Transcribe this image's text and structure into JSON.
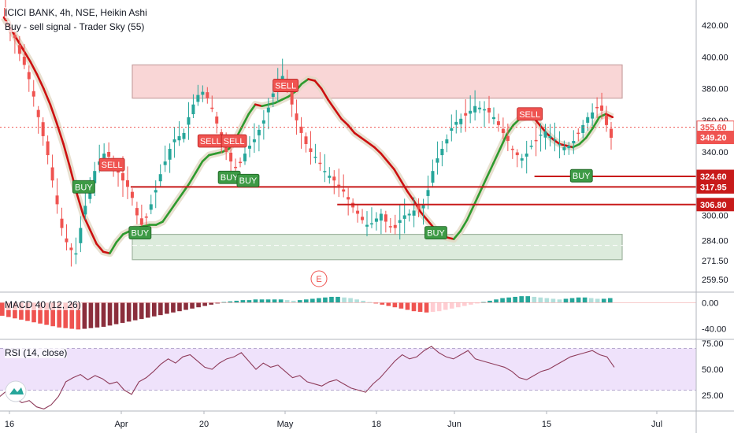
{
  "header": {
    "title": "ICICI BANK, 4h, NSE, Heikin Ashi",
    "indicator": "Buy - sell signal - Trader Sky  (55)"
  },
  "macd_panel": {
    "label": "MACD 40 (12, 26)"
  },
  "rsi_panel": {
    "label": "RSI (14, close)"
  },
  "earnings_marker": "E",
  "colors": {
    "up": "#26a69a",
    "down": "#ef5350",
    "trend_up": "#2e9a2e",
    "trend_down": "#cc1010",
    "sell_zone": "#f9d6d6",
    "buy_zone": "#dcebdc",
    "rsi_band": "#efe2fb",
    "level": "#c81a1a"
  },
  "chart_data": [
    {
      "type": "candlestick",
      "title": "ICICI BANK, 4h, NSE, Heikin Ashi",
      "y_axis": {
        "ticks": [
          420.0,
          400.0,
          380.0,
          360.0,
          340.0,
          324.6,
          317.95,
          306.8,
          300.0,
          284.0,
          271.5,
          259.5
        ],
        "range": [
          252,
          436
        ]
      },
      "x_axis": {
        "labels": [
          "16",
          "Apr",
          "20",
          "May",
          "18",
          "Jun",
          "15",
          "Jul"
        ]
      },
      "price_labels": [
        {
          "value": 355.6,
          "text": "355.60",
          "color": "#ef5350",
          "style": "last"
        },
        {
          "value": 349.2,
          "text": "349.20",
          "color": "#ef5350",
          "style": "filled"
        },
        {
          "value": 324.6,
          "text": "324.60",
          "color": "#c81a1a",
          "style": "filled"
        },
        {
          "value": 317.95,
          "text": "317.95",
          "color": "#c81a1a",
          "style": "filled"
        },
        {
          "value": 306.8,
          "text": "306.80",
          "color": "#c81a1a",
          "style": "filled"
        }
      ],
      "zones": [
        {
          "name": "sell-zone",
          "from": 374,
          "to": 395
        },
        {
          "name": "buy-zone",
          "from": 272,
          "to": 288
        }
      ],
      "level_lines": [
        {
          "value": 324.6,
          "from_bar": 113
        },
        {
          "value": 317.95,
          "from_bar": 27
        },
        {
          "value": 306.8,
          "from_bar": 71
        }
      ],
      "signals": [
        {
          "type": "SELL",
          "bar": 23,
          "price": 332
        },
        {
          "type": "BUY",
          "bar": 17,
          "price": 318
        },
        {
          "type": "BUY",
          "bar": 29,
          "price": 289
        },
        {
          "type": "SELL",
          "bar": 44,
          "price": 347
        },
        {
          "type": "SELL",
          "bar": 49,
          "price": 347
        },
        {
          "type": "BUY",
          "bar": 48,
          "price": 324
        },
        {
          "type": "BUY",
          "bar": 52,
          "price": 322
        },
        {
          "type": "SELL",
          "bar": 60,
          "price": 382
        },
        {
          "type": "BUY",
          "bar": 92,
          "price": 289
        },
        {
          "type": "SELL",
          "bar": 112,
          "price": 364
        },
        {
          "type": "BUY",
          "bar": 123,
          "price": 325
        }
      ],
      "closes": [
        425,
        416,
        412,
        402,
        395,
        386,
        375,
        362,
        350,
        338,
        322,
        307,
        292,
        283,
        278,
        276,
        292,
        306,
        318,
        328,
        334,
        339,
        337,
        333,
        327,
        322,
        318,
        311,
        300,
        294,
        299,
        307,
        316,
        326,
        334,
        342,
        348,
        350,
        352,
        362,
        370,
        376,
        378,
        374,
        368,
        358,
        348,
        340,
        334,
        330,
        333,
        339,
        344,
        348,
        354,
        360,
        368,
        377,
        384,
        388,
        380,
        370,
        360,
        352,
        345,
        340,
        337,
        333,
        328,
        325,
        322,
        319,
        315,
        310,
        305,
        301,
        297,
        294,
        295,
        298,
        301,
        296,
        293,
        292,
        297,
        300,
        301,
        303,
        304,
        307,
        316,
        328,
        336,
        342,
        348,
        355,
        359,
        361,
        363,
        366,
        369,
        368,
        367,
        365,
        362,
        357,
        352,
        347,
        342,
        338,
        336,
        339,
        344,
        347,
        351,
        353,
        350,
        348,
        345,
        343,
        344,
        347,
        352,
        357,
        362,
        365,
        368,
        366,
        357,
        349
      ],
      "trend_line_values": [
        425,
        418,
        411,
        404,
        397,
        389,
        380,
        370,
        358,
        345,
        330,
        314,
        300,
        291,
        282,
        277,
        276,
        283,
        288,
        290,
        292,
        293,
        294,
        294,
        296,
        302,
        308,
        314,
        320,
        327,
        334,
        338,
        339,
        340,
        342,
        348,
        356,
        364,
        370,
        369,
        370,
        371,
        373,
        375,
        378,
        383,
        386,
        385,
        380,
        373,
        367,
        361,
        357,
        352,
        349,
        346,
        343,
        339,
        334,
        329,
        322,
        315,
        309,
        302,
        297,
        292,
        288,
        286,
        285,
        290,
        297,
        306,
        315,
        324,
        333,
        342,
        351,
        357,
        361,
        362,
        362,
        357,
        352,
        348,
        345,
        344,
        343,
        345,
        349,
        355,
        362,
        364,
        362
      ],
      "trend_line_bars": [
        0,
        1,
        2,
        3,
        4,
        5,
        6,
        7,
        8,
        9,
        10,
        11,
        12,
        13,
        14,
        15,
        16,
        17,
        18,
        19,
        20,
        21,
        22,
        23,
        24,
        25,
        26,
        27,
        28,
        29,
        30,
        31,
        32,
        33,
        34,
        35,
        36,
        37,
        38,
        39,
        40,
        41,
        42,
        43,
        44,
        45,
        46,
        47,
        48,
        49,
        50,
        51,
        52,
        53,
        54,
        55,
        56,
        57,
        58,
        59,
        60,
        61,
        62,
        63,
        64,
        65,
        66,
        67,
        68,
        69,
        70,
        71,
        72,
        73,
        74,
        75,
        76,
        77,
        78,
        79,
        80,
        81,
        82,
        83,
        84,
        85,
        86,
        87,
        88,
        89,
        90,
        91,
        92
      ]
    },
    {
      "type": "bar",
      "title": "MACD 40 (12, 26)",
      "y_axis": {
        "ticks": [
          0.0,
          -40.0
        ],
        "range": [
          -55,
          15
        ]
      },
      "values": [
        -20,
        -22,
        -24,
        -26,
        -28,
        -30,
        -32,
        -34,
        -36,
        -38,
        -39,
        -40,
        -41,
        -40,
        -39,
        -38,
        -37,
        -35,
        -33,
        -31,
        -29,
        -27,
        -25,
        -23,
        -21,
        -19,
        -17,
        -15,
        -13,
        -11,
        -9,
        -7,
        -5,
        -3,
        -1,
        1,
        2,
        3,
        4,
        4,
        5,
        5,
        5,
        5,
        5,
        4,
        3,
        4,
        5,
        6,
        7,
        8,
        9,
        9,
        8,
        7,
        5,
        3,
        1,
        -1,
        -3,
        -5,
        -7,
        -9,
        -11,
        -13,
        -14,
        -15,
        -14,
        -13,
        -11,
        -9,
        -7,
        -5,
        -3,
        -1,
        1,
        3,
        5,
        7,
        8,
        9,
        10,
        10,
        9,
        8,
        7,
        6,
        5,
        6,
        7,
        8,
        8,
        7,
        6,
        6,
        7
      ]
    },
    {
      "type": "line",
      "title": "RSI (14, close)",
      "y_axis": {
        "ticks": [
          75.0,
          50.0,
          25.0
        ],
        "range": [
          10,
          78
        ]
      },
      "band": [
        30,
        70
      ],
      "values": [
        24,
        30,
        22,
        18,
        20,
        14,
        12,
        16,
        24,
        38,
        42,
        45,
        40,
        44,
        41,
        36,
        38,
        30,
        26,
        38,
        42,
        48,
        55,
        60,
        56,
        62,
        64,
        58,
        52,
        50,
        56,
        60,
        62,
        66,
        58,
        50,
        56,
        52,
        54,
        48,
        42,
        44,
        38,
        36,
        34,
        38,
        40,
        36,
        32,
        30,
        28,
        36,
        42,
        50,
        58,
        64,
        60,
        62,
        68,
        72,
        66,
        62,
        60,
        64,
        68,
        60,
        58,
        56,
        54,
        52,
        48,
        42,
        40,
        44,
        48,
        50,
        54,
        58,
        62,
        64,
        66,
        68,
        64,
        62,
        52
      ]
    }
  ]
}
